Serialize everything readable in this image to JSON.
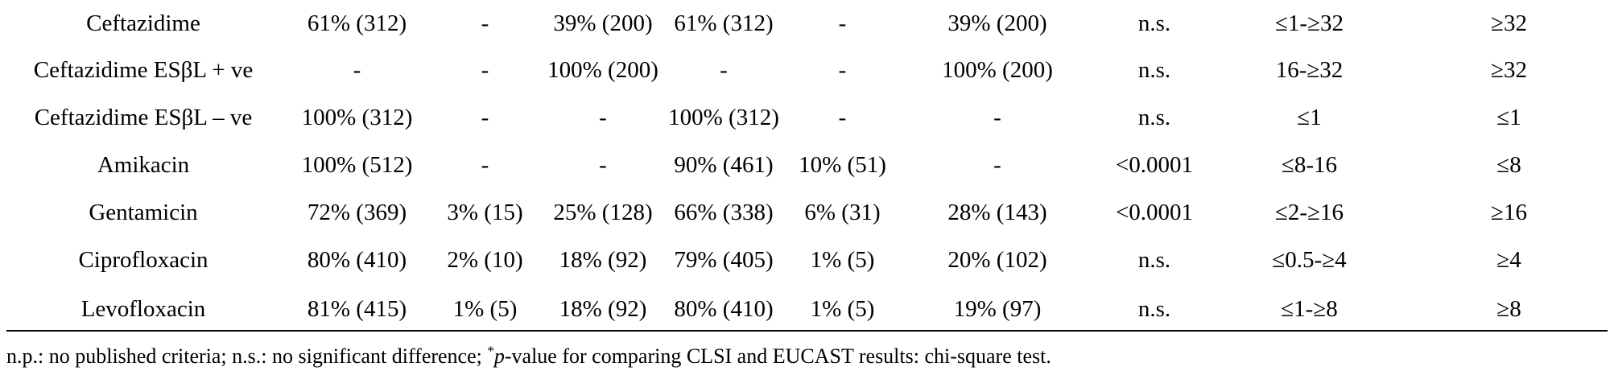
{
  "table": {
    "rows": [
      {
        "label": "Ceftazidime",
        "cells": [
          "61% (312)",
          "-",
          "39% (200)",
          "61% (312)",
          "-",
          "39% (200)",
          "n.s.",
          "≤1-≥32",
          "≥32"
        ]
      },
      {
        "label": "Ceftazidime ESβL + ve",
        "cells": [
          "-",
          "-",
          "100% (200)",
          "-",
          "-",
          "100% (200)",
          "n.s.",
          "16-≥32",
          "≥32"
        ]
      },
      {
        "label": "Ceftazidime ESβL – ve",
        "cells": [
          "100% (312)",
          "-",
          "-",
          "100% (312)",
          "-",
          "-",
          "n.s.",
          "≤1",
          "≤1"
        ]
      },
      {
        "label": "Amikacin",
        "cells": [
          "100% (512)",
          "-",
          "-",
          "90% (461)",
          "10% (51)",
          "-",
          "<0.0001",
          "≤8-16",
          "≤8"
        ]
      },
      {
        "label": "Gentamicin",
        "cells": [
          "72% (369)",
          "3% (15)",
          "25% (128)",
          "66% (338)",
          "6% (31)",
          "28% (143)",
          "<0.0001",
          "≤2-≥16",
          "≥16"
        ]
      },
      {
        "label": "Ciprofloxacin",
        "cells": [
          "80% (410)",
          "2% (10)",
          "18% (92)",
          "79% (405)",
          "1% (5)",
          "20% (102)",
          "n.s.",
          "≤0.5-≥4",
          "≥4"
        ]
      },
      {
        "label": "Levofloxacin",
        "cells": [
          "81% (415)",
          "1% (5)",
          "18% (92)",
          "80% (410)",
          "1% (5)",
          "19% (97)",
          "n.s.",
          "≤1-≥8",
          "≥8"
        ]
      }
    ]
  },
  "footnote": {
    "part1": "n.p.: no published criteria; n.s.: no significant difference; ",
    "marker": "*",
    "pvalue": "p",
    "part2": "-value for comparing CLSI and EUCAST results: chi-square test."
  }
}
